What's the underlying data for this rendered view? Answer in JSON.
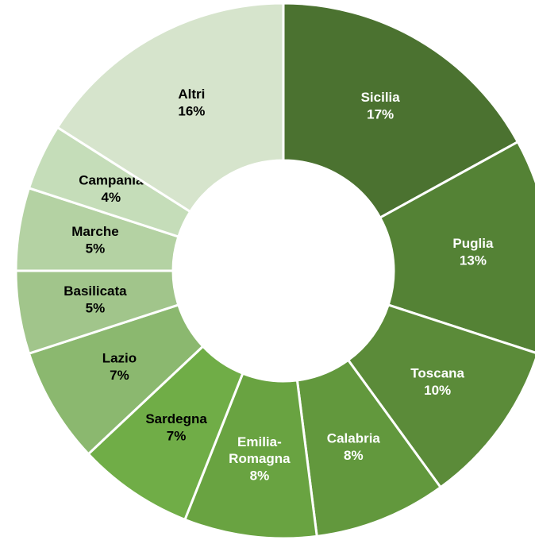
{
  "chart_data": {
    "type": "donut",
    "categories": [
      "Sicilia",
      "Puglia",
      "Toscana",
      "Calabria",
      "Emilia-Romagna",
      "Sardegna",
      "Lazio",
      "Basilicata",
      "Marche",
      "Campania",
      "Altri"
    ],
    "values": [
      17,
      13,
      10,
      8,
      8,
      7,
      7,
      5,
      5,
      4,
      16
    ],
    "value_labels": [
      "17%",
      "13%",
      "10%",
      "8%",
      "8%",
      "7%",
      "7%",
      "5%",
      "5%",
      "4%",
      "16%"
    ],
    "colors": [
      "#4b7230",
      "#548235",
      "#5b8b39",
      "#62983d",
      "#69a341",
      "#70ad47",
      "#8bb86f",
      "#a1c58b",
      "#b4d2a3",
      "#c5ddb9",
      "#d6e4cc"
    ],
    "label_colors": [
      "#ffffff",
      "#ffffff",
      "#ffffff",
      "#ffffff",
      "#ffffff",
      "#000000",
      "#000000",
      "#000000",
      "#000000",
      "#000000",
      "#000000"
    ]
  }
}
